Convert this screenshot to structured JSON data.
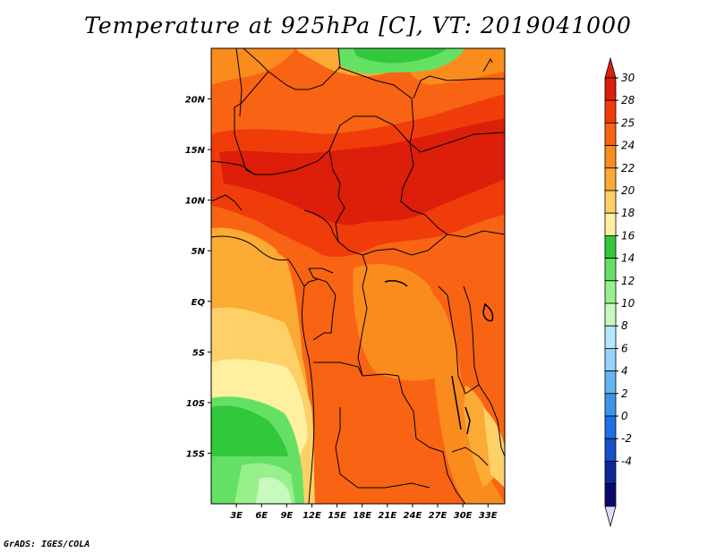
{
  "title": "Temperature at 925hPa [C], VT: 2019041000",
  "credit": "GrADS: IGES/COLA",
  "map": {
    "lon_range": [
      0,
      35
    ],
    "lat_range": [
      -20,
      25
    ],
    "lon_ticks": [
      {
        "value": 3,
        "label": "3E"
      },
      {
        "value": 6,
        "label": "6E"
      },
      {
        "value": 9,
        "label": "9E"
      },
      {
        "value": 12,
        "label": "12E"
      },
      {
        "value": 15,
        "label": "15E"
      },
      {
        "value": 18,
        "label": "18E"
      },
      {
        "value": 21,
        "label": "21E"
      },
      {
        "value": 24,
        "label": "24E"
      },
      {
        "value": 27,
        "label": "27E"
      },
      {
        "value": 30,
        "label": "30E"
      },
      {
        "value": 33,
        "label": "33E"
      }
    ],
    "lat_ticks": [
      {
        "value": 20,
        "label": "20N"
      },
      {
        "value": 15,
        "label": "15N"
      },
      {
        "value": 10,
        "label": "10N"
      },
      {
        "value": 5,
        "label": "5N"
      },
      {
        "value": 0,
        "label": "EQ"
      },
      {
        "value": -5,
        "label": "5S"
      },
      {
        "value": -10,
        "label": "10S"
      },
      {
        "value": -15,
        "label": "15S"
      }
    ]
  },
  "colorbar": {
    "levels": [
      "30",
      "28",
      "25",
      "24",
      "22",
      "20",
      "18",
      "16",
      "14",
      "12",
      "10",
      "8",
      "6",
      "4",
      "2",
      "0",
      "-2",
      "-4"
    ],
    "colors": [
      "#dc1e0a",
      "#f03c0a",
      "#f86414",
      "#fa8c1e",
      "#fbaa34",
      "#fdd068",
      "#fff0a0",
      "#32c83c",
      "#64e164",
      "#98f08c",
      "#c8fac0",
      "#b4e6ff",
      "#96d2fa",
      "#64b4f0",
      "#3c96e6",
      "#1e6eeb",
      "#1450c8",
      "#0a2896",
      "#0a0a6e"
    ],
    "top_color": "#dc1e0a",
    "bottom_color": "#dcdcf5"
  }
}
